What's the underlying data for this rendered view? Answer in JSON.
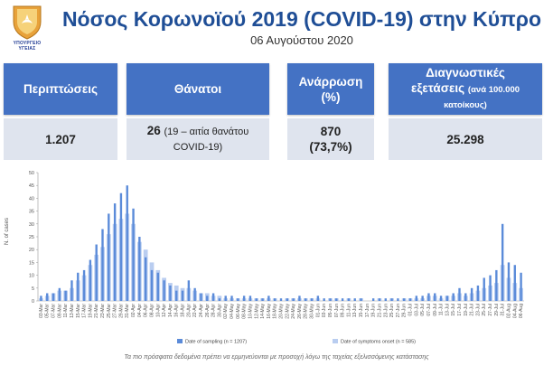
{
  "header": {
    "logo_text": "ΥΠΟΥΡΓΕΙΟ ΥΓΕΙΑΣ",
    "title": "Νόσος Κορωνοϊού 2019 (COVID-19) στην Κύπρο",
    "date": "06 Αυγούστου 2020"
  },
  "stats": {
    "cases": {
      "label": "Περιπτώσεις",
      "value": "1.207"
    },
    "deaths": {
      "label": "Θάνατοι",
      "value": "26",
      "note_line1": "(19 – αιτία θανάτου",
      "note_line2": "COVID-19)"
    },
    "recovery": {
      "label_line1": "Ανάρρωση",
      "label_line2": "(%)",
      "value_line1": "870",
      "value_line2": "(73,7%)"
    },
    "tests": {
      "label_line1": "Διαγνωστικές",
      "label_line2": "εξετάσεις",
      "label_small": "(ανά 100.000",
      "label_line3": "κατοίκους)",
      "value": "25.298"
    }
  },
  "footer_note": "Τα πιο πρόσφατα δεδομένα πρέπει να ερμηνεύονται με προσοχή λόγω της ταχείας εξελισσόμενης κατάστασης",
  "colors": {
    "accent": "#4472c4",
    "title": "#1f4e96",
    "bar_sampling": "#5b8bd9",
    "bar_onset": "#b9cdf0"
  },
  "chart_data": {
    "type": "bar",
    "ylabel": "N. of cases",
    "ylim": [
      0,
      50
    ],
    "yticks": [
      0,
      5,
      10,
      15,
      20,
      25,
      30,
      35,
      40,
      45,
      50
    ],
    "grid": false,
    "legend_position": "bottom",
    "categories": [
      "03-Mar",
      "05-Mar",
      "07-Mar",
      "09-Mar",
      "11-Mar",
      "13-Mar",
      "15-Mar",
      "17-Mar",
      "19-Mar",
      "21-Mar",
      "23-Mar",
      "25-Mar",
      "27-Mar",
      "29-Mar",
      "31-Mar",
      "02-Apr",
      "04-Apr",
      "06-Apr",
      "08-Apr",
      "10-Apr",
      "12-Apr",
      "14-Apr",
      "16-Apr",
      "18-Apr",
      "20-Apr",
      "22-Apr",
      "24-Apr",
      "26-Apr",
      "28-Apr",
      "30-Apr",
      "02-May",
      "04-May",
      "06-May",
      "08-May",
      "10-May",
      "12-May",
      "14-May",
      "16-May",
      "18-May",
      "20-May",
      "22-May",
      "24-May",
      "26-May",
      "28-May",
      "30-May",
      "01-Jun",
      "03-Jun",
      "05-Jun",
      "07-Jun",
      "09-Jun",
      "11-Jun",
      "13-Jun",
      "15-Jun",
      "17-Jun",
      "19-Jun",
      "21-Jun",
      "23-Jun",
      "25-Jun",
      "27-Jun",
      "29-Jun",
      "01-Jul",
      "03-Jul",
      "05-Jul",
      "07-Jul",
      "09-Jul",
      "11-Jul",
      "13-Jul",
      "15-Jul",
      "17-Jul",
      "19-Jul",
      "21-Jul",
      "23-Jul",
      "25-Jul",
      "27-Jul",
      "29-Jul",
      "31-Jul",
      "02-Aug",
      "04-Aug",
      "06-Aug"
    ],
    "series": [
      {
        "name": "Date of sampling (n = 1207)",
        "values": [
          2,
          3,
          3,
          5,
          4,
          8,
          11,
          12,
          16,
          22,
          28,
          34,
          38,
          42,
          45,
          36,
          25,
          17,
          12,
          11,
          8,
          6,
          4,
          4,
          8,
          5,
          3,
          2,
          3,
          1,
          2,
          2,
          1,
          2,
          2,
          1,
          1,
          2,
          1,
          1,
          1,
          1,
          2,
          1,
          1,
          2,
          1,
          1,
          1,
          1,
          1,
          1,
          1,
          0,
          1,
          1,
          1,
          1,
          1,
          1,
          1,
          2,
          2,
          3,
          3,
          2,
          2,
          3,
          5,
          3,
          5,
          6,
          9,
          10,
          12,
          30,
          15,
          14,
          11
        ]
      },
      {
        "name": "Date of symptoms onset (n = 585)",
        "values": [
          1,
          2,
          3,
          4,
          4,
          5,
          8,
          10,
          14,
          18,
          21,
          26,
          30,
          32,
          34,
          30,
          23,
          20,
          15,
          12,
          9,
          7,
          6,
          5,
          5,
          4,
          3,
          3,
          2,
          2,
          1,
          1,
          1,
          1,
          1,
          1,
          1,
          1,
          1,
          0,
          1,
          1,
          1,
          1,
          1,
          1,
          0,
          1,
          1,
          0,
          1,
          0,
          1,
          0,
          0,
          1,
          0,
          1,
          0,
          1,
          1,
          1,
          1,
          2,
          2,
          1,
          2,
          2,
          3,
          2,
          3,
          4,
          5,
          6,
          7,
          14,
          9,
          7,
          5
        ]
      }
    ]
  }
}
